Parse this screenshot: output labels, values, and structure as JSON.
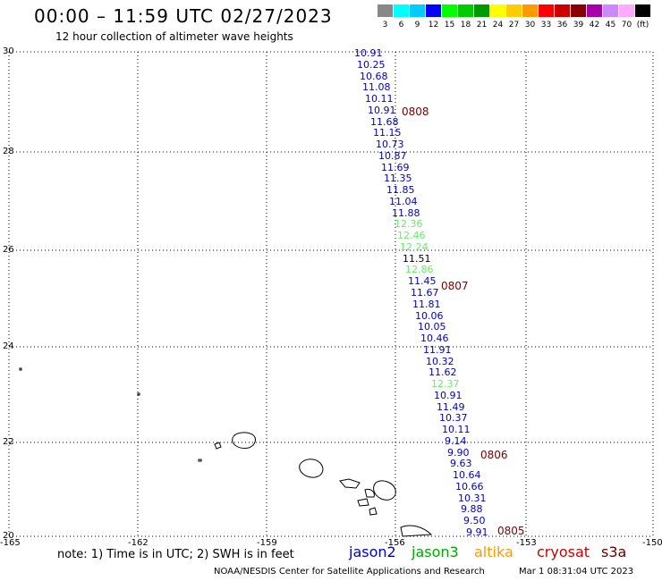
{
  "title": "00:00 – 11:59 UTC 02/27/2023",
  "subtitle": "12 hour collection of altimeter wave heights",
  "scale": {
    "labels": [
      "3",
      "6",
      "9",
      "12",
      "15",
      "18",
      "21",
      "24",
      "27",
      "30",
      "33",
      "36",
      "39",
      "42",
      "45",
      "70",
      "(ft)"
    ],
    "colors": [
      "#888888",
      "#00ffff",
      "#00ccff",
      "#0000ff",
      "#00ff00",
      "#00cc00",
      "#009900",
      "#ffff00",
      "#ffcc00",
      "#ff9900",
      "#ff0000",
      "#cc0000",
      "#880000",
      "#aa00aa",
      "#cc88ff",
      "#ffaaff",
      "#000000"
    ]
  },
  "axes": {
    "lat_labels": [
      "30",
      "28",
      "26",
      "24",
      "22",
      "20"
    ],
    "lon_labels": [
      "-165",
      "-162",
      "-159",
      "-156",
      "-153",
      "-150"
    ]
  },
  "colors": {
    "jason2": "#0000cc",
    "jason3": "#00aa00",
    "altika": "#ff9900",
    "cryosat": "#cc0000",
    "s3a": "#660000",
    "light_green": "#66ee66"
  },
  "track": [
    {
      "v": "10.91",
      "c": "jason2"
    },
    {
      "v": "10.25",
      "c": "jason2"
    },
    {
      "v": "10.68",
      "c": "jason2"
    },
    {
      "v": "11.08",
      "c": "jason2"
    },
    {
      "v": "10.11",
      "c": "jason2"
    },
    {
      "v": "10.91",
      "c": "jason2"
    },
    {
      "v": "11.68",
      "c": "jason2"
    },
    {
      "v": "11.15",
      "c": "jason2"
    },
    {
      "v": "10.73",
      "c": "jason2"
    },
    {
      "v": "10.87",
      "c": "jason2"
    },
    {
      "v": "11.69",
      "c": "jason2"
    },
    {
      "v": "11.35",
      "c": "jason2"
    },
    {
      "v": "11.85",
      "c": "jason2"
    },
    {
      "v": "11.04",
      "c": "jason2"
    },
    {
      "v": "11.88",
      "c": "jason2"
    },
    {
      "v": "12.36",
      "c": "light_green"
    },
    {
      "v": "12.46",
      "c": "light_green"
    },
    {
      "v": "12.24",
      "c": "light_green"
    },
    {
      "v": "11.51",
      "c": "black"
    },
    {
      "v": "12.86",
      "c": "light_green"
    },
    {
      "v": "11.45",
      "c": "jason2"
    },
    {
      "v": "11.67",
      "c": "jason2"
    },
    {
      "v": "11.81",
      "c": "jason2"
    },
    {
      "v": "10.06",
      "c": "jason2"
    },
    {
      "v": "10.05",
      "c": "jason2"
    },
    {
      "v": "10.46",
      "c": "jason2"
    },
    {
      "v": "11.91",
      "c": "jason2"
    },
    {
      "v": "10.32",
      "c": "jason2"
    },
    {
      "v": "11.62",
      "c": "jason2"
    },
    {
      "v": "12.37",
      "c": "light_green"
    },
    {
      "v": "10.91",
      "c": "jason2"
    },
    {
      "v": "11.49",
      "c": "jason2"
    },
    {
      "v": "10.37",
      "c": "jason2"
    },
    {
      "v": "10.11",
      "c": "jason2"
    },
    {
      "v": "9.14",
      "c": "jason2"
    },
    {
      "v": "9.90",
      "c": "jason2"
    },
    {
      "v": "9.63",
      "c": "jason2"
    },
    {
      "v": "10.64",
      "c": "jason2"
    },
    {
      "v": "10.66",
      "c": "jason2"
    },
    {
      "v": "10.31",
      "c": "jason2"
    },
    {
      "v": "9.88",
      "c": "jason2"
    },
    {
      "v": "9.50",
      "c": "jason2"
    },
    {
      "v": "9.91",
      "c": "jason2"
    }
  ],
  "times": [
    "0808",
    "0807",
    "0806",
    "0805"
  ],
  "note": "note: 1) Time is in UTC; 2) SWH is in feet",
  "legend": [
    "jason2",
    "jason3",
    "altika",
    "cryosat",
    "s3a"
  ],
  "credit": "NOAA/NESDIS Center for Satellite Applications and Research",
  "stamp": "Mar  1 08:31:04 UTC 2023"
}
